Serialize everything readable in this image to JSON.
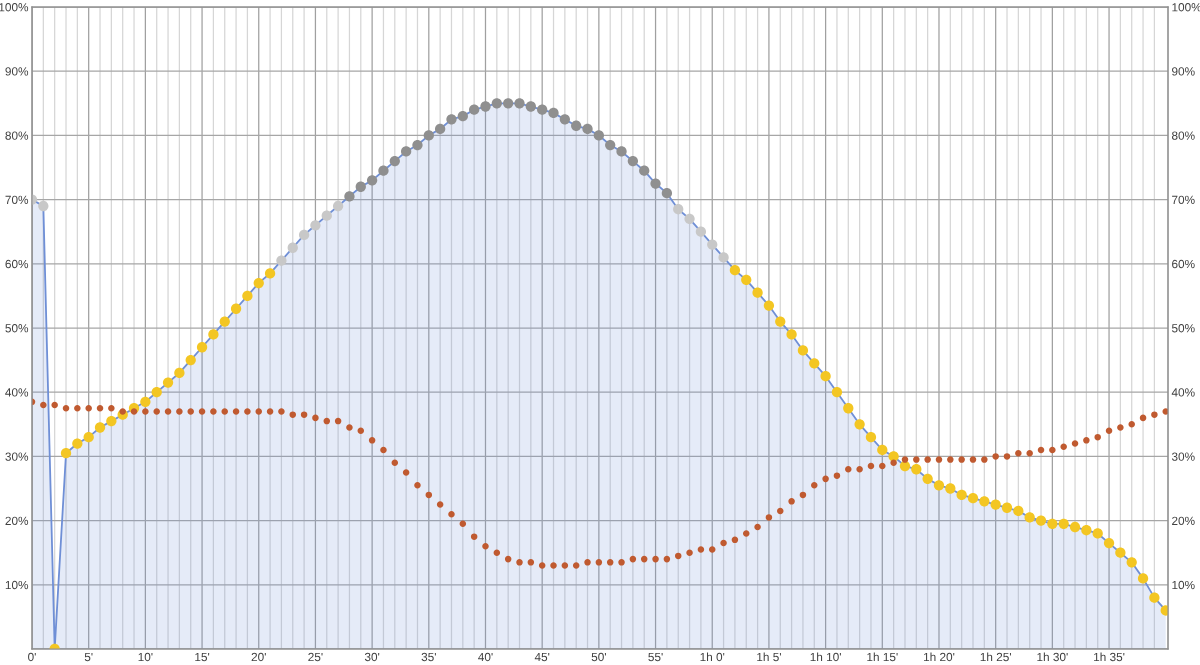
{
  "chart_data": {
    "type": "area",
    "x": [
      0,
      1,
      2,
      3,
      4,
      5,
      6,
      7,
      8,
      9,
      10,
      11,
      12,
      13,
      14,
      15,
      16,
      17,
      18,
      19,
      20,
      21,
      22,
      23,
      24,
      25,
      26,
      27,
      28,
      29,
      30,
      31,
      32,
      33,
      34,
      35,
      36,
      37,
      38,
      39,
      40,
      41,
      42,
      43,
      44,
      45,
      46,
      47,
      48,
      49,
      50,
      51,
      52,
      53,
      54,
      55,
      56,
      57,
      58,
      59,
      60,
      61,
      62,
      63,
      64,
      65,
      66,
      67,
      68,
      69,
      70,
      71,
      72,
      73,
      74,
      75,
      76,
      77,
      78,
      79,
      80,
      81,
      82,
      83,
      84,
      85,
      86,
      87,
      88,
      89,
      90,
      91,
      92,
      93,
      94,
      95,
      96,
      97,
      98,
      99,
      100
    ],
    "series": [
      {
        "color": "#6f8fd6",
        "colors": [
          "#c8c8c8",
          "#c8c8c8",
          "#f3c623",
          "#f3c623",
          "#f3c623",
          "#f3c623",
          "#f3c623",
          "#f3c623",
          "#f3c623",
          "#f3c623",
          "#f3c623",
          "#f3c623",
          "#f3c623",
          "#f3c623",
          "#f3c623",
          "#f3c623",
          "#f3c623",
          "#f3c623",
          "#f3c623",
          "#f3c623",
          "#f3c623",
          "#f3c623",
          "#c8c8c8",
          "#c8c8c8",
          "#c8c8c8",
          "#c8c8c8",
          "#c8c8c8",
          "#c8c8c8",
          "#8f8f8f",
          "#8f8f8f",
          "#8f8f8f",
          "#8f8f8f",
          "#8f8f8f",
          "#8f8f8f",
          "#8f8f8f",
          "#8f8f8f",
          "#8f8f8f",
          "#8f8f8f",
          "#8f8f8f",
          "#8f8f8f",
          "#8f8f8f",
          "#8f8f8f",
          "#8f8f8f",
          "#8f8f8f",
          "#8f8f8f",
          "#8f8f8f",
          "#8f8f8f",
          "#8f8f8f",
          "#8f8f8f",
          "#8f8f8f",
          "#8f8f8f",
          "#8f8f8f",
          "#8f8f8f",
          "#8f8f8f",
          "#8f8f8f",
          "#8f8f8f",
          "#8f8f8f",
          "#c8c8c8",
          "#c8c8c8",
          "#c8c8c8",
          "#c8c8c8",
          "#c8c8c8",
          "#f3c623",
          "#f3c623",
          "#f3c623",
          "#f3c623",
          "#f3c623",
          "#f3c623",
          "#f3c623",
          "#f3c623",
          "#f3c623",
          "#f3c623",
          "#f3c623",
          "#f3c623",
          "#f3c623",
          "#f3c623",
          "#f3c623",
          "#f3c623",
          "#f3c623",
          "#f3c623",
          "#f3c623",
          "#f3c623",
          "#f3c623",
          "#f3c623",
          "#f3c623",
          "#f3c623",
          "#f3c623",
          "#f3c623",
          "#f3c623",
          "#f3c623",
          "#f3c623",
          "#f3c623",
          "#f3c623",
          "#f3c623",
          "#f3c623",
          "#f3c623",
          "#f3c623",
          "#f3c623",
          "#f3c623",
          "#f3c623",
          "#f3c623"
        ],
        "values": [
          70,
          69,
          0,
          30.5,
          32,
          33,
          34.5,
          35.5,
          36.5,
          37.5,
          38.5,
          40,
          41.5,
          43,
          45,
          47,
          49,
          51,
          53,
          55,
          57,
          58.5,
          60.5,
          62.5,
          64.5,
          66,
          67.5,
          69,
          70.5,
          72,
          73,
          74.5,
          76,
          77.5,
          78.5,
          80,
          81,
          82.5,
          83,
          84,
          84.5,
          85,
          85,
          85,
          84.5,
          84,
          83.5,
          82.5,
          81.5,
          81,
          80,
          78.5,
          77.5,
          76,
          74.5,
          72.5,
          71,
          68.5,
          67,
          65,
          63,
          61,
          59,
          57.5,
          55.5,
          53.5,
          51,
          49,
          46.5,
          44.5,
          42.5,
          40,
          37.5,
          35,
          33,
          31,
          30,
          28.5,
          28,
          26.5,
          25.5,
          25,
          24,
          23.5,
          23,
          22.5,
          22,
          21.5,
          20.5,
          20,
          19.5,
          19.5,
          19,
          18.5,
          18,
          16.5,
          15,
          13.5,
          11,
          8,
          6
        ]
      },
      {
        "type": "scatter",
        "color": "#c05a30",
        "values": [
          38.5,
          38,
          38,
          37.5,
          37.5,
          37.5,
          37.5,
          37.5,
          37,
          37,
          37,
          37,
          37,
          37,
          37,
          37,
          37,
          37,
          37,
          37,
          37,
          37,
          37,
          36.5,
          36.5,
          36,
          35.5,
          35.5,
          34.5,
          34,
          32.5,
          31,
          29,
          27.5,
          25.5,
          24,
          22.5,
          21,
          19.5,
          17.5,
          16,
          15,
          14,
          13.5,
          13.5,
          13,
          13,
          13,
          13,
          13.5,
          13.5,
          13.5,
          13.5,
          14,
          14,
          14,
          14,
          14.5,
          15,
          15.5,
          15.5,
          16.5,
          17,
          18,
          19,
          20.5,
          21.5,
          23,
          24,
          25.5,
          26.5,
          27,
          28,
          28,
          28.5,
          28.5,
          29,
          29.5,
          29.5,
          29.5,
          29.5,
          29.5,
          29.5,
          29.5,
          29.5,
          30,
          30,
          30.5,
          30.5,
          31,
          31,
          31.5,
          32,
          32.5,
          33,
          34,
          34.5,
          35,
          36,
          36.5,
          37
        ]
      }
    ],
    "xlim": [
      0,
      100.2
    ],
    "xticks": [
      {
        "value": 0,
        "label": "0'"
      },
      {
        "value": 1,
        "label": null
      },
      {
        "value": 2,
        "label": null
      },
      {
        "value": 3,
        "label": null
      },
      {
        "value": 4,
        "label": null
      },
      {
        "value": 5,
        "label": "5'"
      },
      {
        "value": 6,
        "label": null
      },
      {
        "value": 7,
        "label": null
      },
      {
        "value": 8,
        "label": null
      },
      {
        "value": 9,
        "label": null
      },
      {
        "value": 10,
        "label": "10'"
      },
      {
        "value": 11,
        "label": null
      },
      {
        "value": 12,
        "label": null
      },
      {
        "value": 13,
        "label": null
      },
      {
        "value": 14,
        "label": null
      },
      {
        "value": 15,
        "label": "15'"
      },
      {
        "value": 16,
        "label": null
      },
      {
        "value": 17,
        "label": null
      },
      {
        "value": 18,
        "label": null
      },
      {
        "value": 19,
        "label": null
      },
      {
        "value": 20,
        "label": "20'"
      },
      {
        "value": 21,
        "label": null
      },
      {
        "value": 22,
        "label": null
      },
      {
        "value": 23,
        "label": null
      },
      {
        "value": 24,
        "label": null
      },
      {
        "value": 25,
        "label": "25'"
      },
      {
        "value": 26,
        "label": null
      },
      {
        "value": 27,
        "label": null
      },
      {
        "value": 28,
        "label": null
      },
      {
        "value": 29,
        "label": null
      },
      {
        "value": 30,
        "label": "30'"
      },
      {
        "value": 31,
        "label": null
      },
      {
        "value": 32,
        "label": null
      },
      {
        "value": 33,
        "label": null
      },
      {
        "value": 34,
        "label": null
      },
      {
        "value": 35,
        "label": "35'"
      },
      {
        "value": 36,
        "label": null
      },
      {
        "value": 37,
        "label": null
      },
      {
        "value": 38,
        "label": null
      },
      {
        "value": 39,
        "label": null
      },
      {
        "value": 40,
        "label": "40'"
      },
      {
        "value": 41,
        "label": null
      },
      {
        "value": 42,
        "label": null
      },
      {
        "value": 43,
        "label": null
      },
      {
        "value": 44,
        "label": null
      },
      {
        "value": 45,
        "label": "45'"
      },
      {
        "value": 46,
        "label": null
      },
      {
        "value": 47,
        "label": null
      },
      {
        "value": 48,
        "label": null
      },
      {
        "value": 49,
        "label": null
      },
      {
        "value": 50,
        "label": "50'"
      },
      {
        "value": 51,
        "label": null
      },
      {
        "value": 52,
        "label": null
      },
      {
        "value": 53,
        "label": null
      },
      {
        "value": 54,
        "label": null
      },
      {
        "value": 55,
        "label": "55'"
      },
      {
        "value": 56,
        "label": null
      },
      {
        "value": 57,
        "label": null
      },
      {
        "value": 58,
        "label": null
      },
      {
        "value": 59,
        "label": null
      },
      {
        "value": 60,
        "label": "1h 0'"
      },
      {
        "value": 61,
        "label": null
      },
      {
        "value": 62,
        "label": null
      },
      {
        "value": 63,
        "label": null
      },
      {
        "value": 64,
        "label": null
      },
      {
        "value": 65,
        "label": "1h 5'"
      },
      {
        "value": 66,
        "label": null
      },
      {
        "value": 67,
        "label": null
      },
      {
        "value": 68,
        "label": null
      },
      {
        "value": 69,
        "label": null
      },
      {
        "value": 70,
        "label": "1h 10'"
      },
      {
        "value": 71,
        "label": null
      },
      {
        "value": 72,
        "label": null
      },
      {
        "value": 73,
        "label": null
      },
      {
        "value": 74,
        "label": null
      },
      {
        "value": 75,
        "label": "1h 15'"
      },
      {
        "value": 76,
        "label": null
      },
      {
        "value": 77,
        "label": null
      },
      {
        "value": 78,
        "label": null
      },
      {
        "value": 79,
        "label": null
      },
      {
        "value": 80,
        "label": "1h 20'"
      },
      {
        "value": 81,
        "label": null
      },
      {
        "value": 82,
        "label": null
      },
      {
        "value": 83,
        "label": null
      },
      {
        "value": 84,
        "label": null
      },
      {
        "value": 85,
        "label": "1h 25'"
      },
      {
        "value": 86,
        "label": null
      },
      {
        "value": 87,
        "label": null
      },
      {
        "value": 88,
        "label": null
      },
      {
        "value": 89,
        "label": null
      },
      {
        "value": 90,
        "label": "1h 30'"
      },
      {
        "value": 91,
        "label": null
      },
      {
        "value": 92,
        "label": null
      },
      {
        "value": 93,
        "label": null
      },
      {
        "value": 94,
        "label": null
      },
      {
        "value": 95,
        "label": "1h 35'"
      },
      {
        "value": 96,
        "label": null
      },
      {
        "value": 97,
        "label": null
      },
      {
        "value": 98,
        "label": null
      },
      {
        "value": 99,
        "label": null
      }
    ],
    "ylim": [
      0,
      100
    ],
    "yticks": [
      {
        "value": 0,
        "label": null
      },
      {
        "value": 10,
        "label": "10%"
      },
      {
        "value": 20,
        "label": "20%"
      },
      {
        "value": 30,
        "label": "30%"
      },
      {
        "value": 40,
        "label": "40%"
      },
      {
        "value": 50,
        "label": "50%"
      },
      {
        "value": 60,
        "label": "60%"
      },
      {
        "value": 70,
        "label": "70%"
      },
      {
        "value": 80,
        "label": "80%"
      },
      {
        "value": 90,
        "label": "90%"
      },
      {
        "value": 100,
        "label": "100%"
      }
    ],
    "y2lim": [
      0,
      100
    ],
    "y2ticks": [
      {
        "value": 0,
        "label": null
      },
      {
        "value": 10,
        "label": "10%"
      },
      {
        "value": 20,
        "label": "20%"
      },
      {
        "value": 30,
        "label": "30%"
      },
      {
        "value": 40,
        "label": "40%"
      },
      {
        "value": 50,
        "label": "50%"
      },
      {
        "value": 60,
        "label": "60%"
      },
      {
        "value": 70,
        "label": "70%"
      },
      {
        "value": 80,
        "label": "80%"
      },
      {
        "value": 90,
        "label": "90%"
      },
      {
        "value": 100,
        "label": "100%"
      }
    ],
    "grid": true
  }
}
